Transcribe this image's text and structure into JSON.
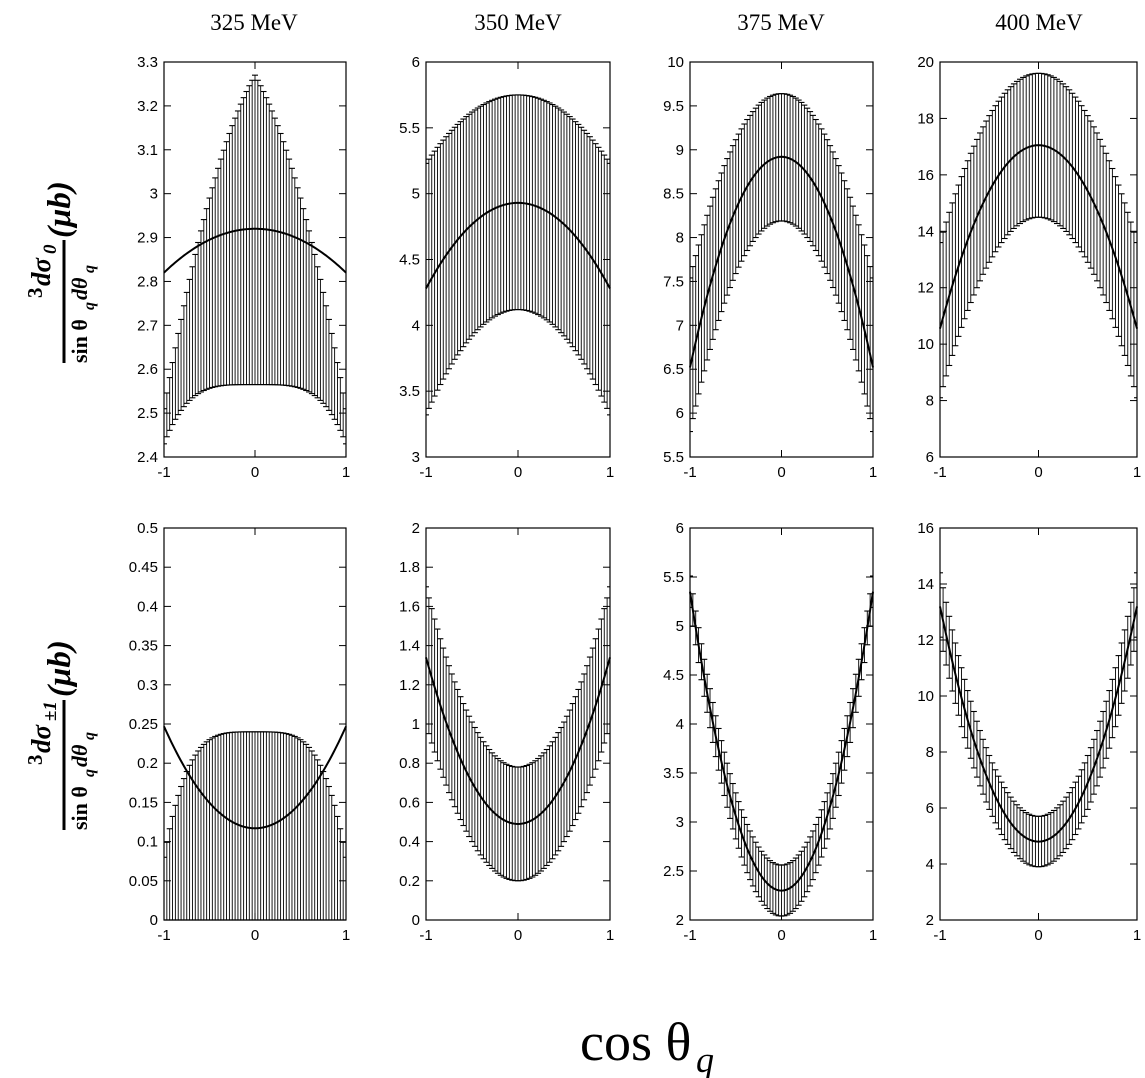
{
  "column_titles": [
    "325 MeV",
    "350 MeV",
    "375 MeV",
    "400 MeV"
  ],
  "ylabel_top": {
    "prefix": "3",
    "numerator": "dσ",
    "numerator_sub": "0",
    "denominator": "sin θ",
    "denominator_sub1": "q",
    "denominator_mid": "dθ",
    "denominator_sub2": "q",
    "unit": "(μb)"
  },
  "ylabel_bottom": {
    "prefix": "3",
    "numerator": "dσ",
    "numerator_sub": "±1",
    "denominator": "sin θ",
    "denominator_sub1": "q",
    "denominator_mid": "dθ",
    "denominator_sub2": "q",
    "unit": "(μb)"
  },
  "xlabel": {
    "main": "cos θ",
    "sub": "q"
  },
  "chart_data": [
    {
      "type": "line",
      "row": 0,
      "col": 0,
      "title": "325 MeV",
      "xlim": [
        -1,
        1
      ],
      "ylim": [
        2.4,
        3.3
      ],
      "xticks": [
        -1,
        0,
        1
      ],
      "yticks": [
        2.4,
        2.5,
        2.6,
        2.7,
        2.8,
        2.9,
        3,
        3.1,
        3.2,
        3.3
      ],
      "ytick_labels": [
        "2.4",
        "2.5",
        "2.6",
        "2.7",
        "2.8",
        "2.9",
        "3",
        "3.1",
        "3.2",
        "3.3"
      ],
      "central": {
        "a": 2.92,
        "b": 0.1
      },
      "upper": {
        "a": 3.27,
        "p2": 0.4,
        "p4": 0.36,
        "e": 1.0
      },
      "lower": {
        "a": 2.565,
        "p2": 0.0,
        "p4": 0.135,
        "e": 4.0
      }
    },
    {
      "type": "line",
      "row": 0,
      "col": 1,
      "title": "350 MeV",
      "xlim": [
        -1,
        1
      ],
      "ylim": [
        3,
        6
      ],
      "xticks": [
        -1,
        0,
        1
      ],
      "yticks": [
        3,
        3.5,
        4,
        4.5,
        5,
        5.5,
        6
      ],
      "ytick_labels": [
        "3",
        "3.5",
        "4",
        "4.5",
        "5",
        "5.5",
        "6"
      ],
      "central": {
        "a": 4.93,
        "b": 0.65
      },
      "upper": {
        "a": 5.75,
        "p2": 0.52,
        "p4": 0.0,
        "e": 1.0
      },
      "lower": {
        "a": 4.12,
        "p2": 0.8,
        "p4": 0.0,
        "e": 1.0
      }
    },
    {
      "type": "line",
      "row": 0,
      "col": 2,
      "title": "375 MeV",
      "xlim": [
        -1,
        1
      ],
      "ylim": [
        5.5,
        10
      ],
      "xticks": [
        -1,
        0,
        1
      ],
      "yticks": [
        5.5,
        6,
        6.5,
        7,
        7.5,
        8,
        8.5,
        9,
        9.5,
        10
      ],
      "ytick_labels": [
        "5.5",
        "6",
        "6.5",
        "7",
        "7.5",
        "8",
        "8.5",
        "9",
        "9.5",
        "10"
      ],
      "central": {
        "a": 8.92,
        "b": 2.4
      },
      "upper": {
        "a": 9.64,
        "p2": 2.1,
        "p4": 0.0,
        "e": 1.0
      },
      "lower": {
        "a": 8.19,
        "p2": 2.4,
        "p4": 0.0,
        "e": 1.0
      }
    },
    {
      "type": "line",
      "row": 0,
      "col": 3,
      "title": "400 MeV",
      "xlim": [
        -1,
        1
      ],
      "ylim": [
        6,
        20
      ],
      "xticks": [
        -1,
        0,
        1
      ],
      "yticks": [
        6,
        8,
        10,
        12,
        14,
        16,
        18,
        20
      ],
      "ytick_labels": [
        "6",
        "8",
        "10",
        "12",
        "14",
        "16",
        "18",
        "20"
      ],
      "central": {
        "a": 17.05,
        "b": 6.5
      },
      "upper": {
        "a": 19.6,
        "p2": 6.0,
        "p4": 0.0,
        "e": 1.0
      },
      "lower": {
        "a": 14.5,
        "p2": 6.4,
        "p4": 0.0,
        "e": 1.0
      }
    },
    {
      "type": "line",
      "row": 1,
      "col": 0,
      "title": "",
      "xlim": [
        -1,
        1
      ],
      "ylim": [
        0,
        0.5
      ],
      "xticks": [
        -1,
        0,
        1
      ],
      "yticks": [
        0,
        0.05,
        0.1,
        0.15,
        0.2,
        0.25,
        0.3,
        0.35,
        0.4,
        0.45,
        0.5
      ],
      "ytick_labels": [
        "0",
        "0.05",
        "0.1",
        "0.15",
        "0.2",
        "0.25",
        "0.3",
        "0.35",
        "0.4",
        "0.45",
        "0.5"
      ],
      "central": {
        "a": 0.117,
        "b": -0.13
      },
      "upper": {
        "a": 0.24,
        "p2": 0.0,
        "p4": 0.16,
        "e": 4.0
      },
      "lower": {
        "a": 0.0,
        "p2": 0.0,
        "p4": 0.09,
        "e": 8.0
      }
    },
    {
      "type": "line",
      "row": 1,
      "col": 1,
      "title": "",
      "xlim": [
        -1,
        1
      ],
      "ylim": [
        0,
        2
      ],
      "xticks": [
        -1,
        0,
        1
      ],
      "yticks": [
        0,
        0.2,
        0.4,
        0.6,
        0.8,
        1,
        1.2,
        1.4,
        1.6,
        1.8,
        2
      ],
      "ytick_labels": [
        "0",
        "0.2",
        "0.4",
        "0.6",
        "0.8",
        "1",
        "1.2",
        "1.4",
        "1.6",
        "1.8",
        "2"
      ],
      "central": {
        "a": 0.49,
        "b": -0.85
      },
      "upper": {
        "a": 0.78,
        "p2": -0.92,
        "p4": 0.0,
        "e": 1.0
      },
      "lower": {
        "a": 0.2,
        "p2": -0.8,
        "p4": 0.0,
        "e": 1.0
      }
    },
    {
      "type": "line",
      "row": 1,
      "col": 2,
      "title": "",
      "xlim": [
        -1,
        1
      ],
      "ylim": [
        2,
        6
      ],
      "xticks": [
        -1,
        0,
        1
      ],
      "yticks": [
        2,
        2.5,
        3,
        3.5,
        4,
        4.5,
        5,
        5.5,
        6
      ],
      "ytick_labels": [
        "2",
        "2.5",
        "3",
        "3.5",
        "4",
        "4.5",
        "5",
        "5.5",
        "6"
      ],
      "central": {
        "a": 2.3,
        "b": -3.05
      },
      "upper": {
        "a": 2.56,
        "p2": -2.95,
        "p4": 0.0,
        "e": 1.0
      },
      "lower": {
        "a": 2.04,
        "p2": -3.15,
        "p4": 0.0,
        "e": 1.0
      }
    },
    {
      "type": "line",
      "row": 1,
      "col": 3,
      "title": "",
      "xlim": [
        -1,
        1
      ],
      "ylim": [
        2,
        16
      ],
      "xticks": [
        -1,
        0,
        1
      ],
      "yticks": [
        2,
        4,
        6,
        8,
        10,
        12,
        14,
        16
      ],
      "ytick_labels": [
        "2",
        "4",
        "6",
        "8",
        "10",
        "12",
        "14",
        "16"
      ],
      "central": {
        "a": 4.8,
        "b": -8.4
      },
      "upper": {
        "a": 5.7,
        "p2": -8.7,
        "p4": 0.0,
        "e": 1.0
      },
      "lower": {
        "a": 3.9,
        "p2": -8.2,
        "p4": 0.0,
        "e": 1.0
      }
    }
  ]
}
